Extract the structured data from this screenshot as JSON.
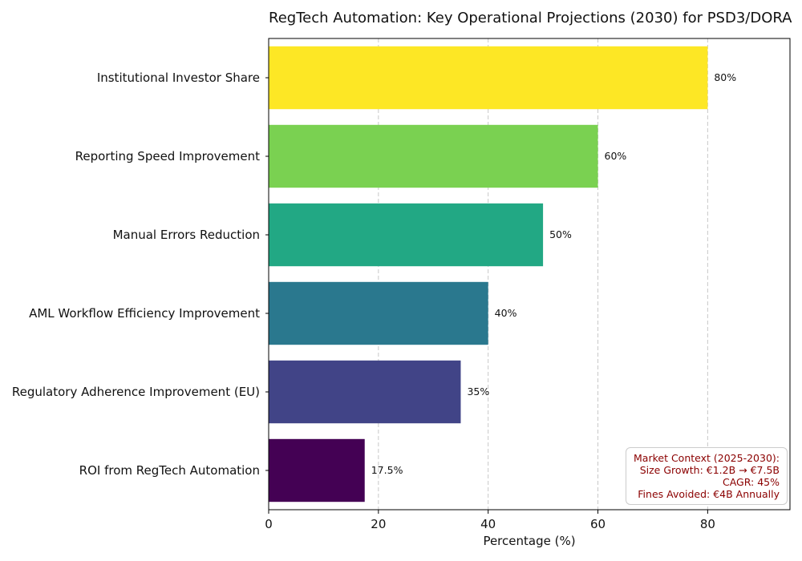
{
  "chart_data": {
    "type": "bar",
    "orientation": "horizontal",
    "title": "RegTech Automation: Key Operational Projections (2030) for PSD3/DORA",
    "xlabel": "Percentage (%)",
    "ylabel": "",
    "xlim": [
      0,
      95
    ],
    "xticks": [
      0,
      20,
      40,
      60,
      80
    ],
    "grid": "x-dashed",
    "categories": [
      "Institutional Investor Share",
      "Reporting Speed Improvement",
      "Manual Errors Reduction",
      "AML Workflow Efficiency Improvement",
      "Regulatory Adherence Improvement (EU)",
      "ROI from RegTech Automation"
    ],
    "values": [
      80,
      60,
      50,
      40,
      35,
      17.5
    ],
    "value_labels": [
      "80%",
      "60%",
      "50%",
      "40%",
      "35%",
      "17.5%"
    ],
    "colors": [
      "#fde725",
      "#7ad151",
      "#22a884",
      "#2a788e",
      "#414487",
      "#440154"
    ]
  },
  "annotation": {
    "lines": [
      "Market Context (2025-2030):",
      "Size Growth: €1.2B → €7.5B",
      "CAGR: 45%",
      "Fines Avoided: €4B Annually"
    ],
    "color": "#8b0000"
  }
}
